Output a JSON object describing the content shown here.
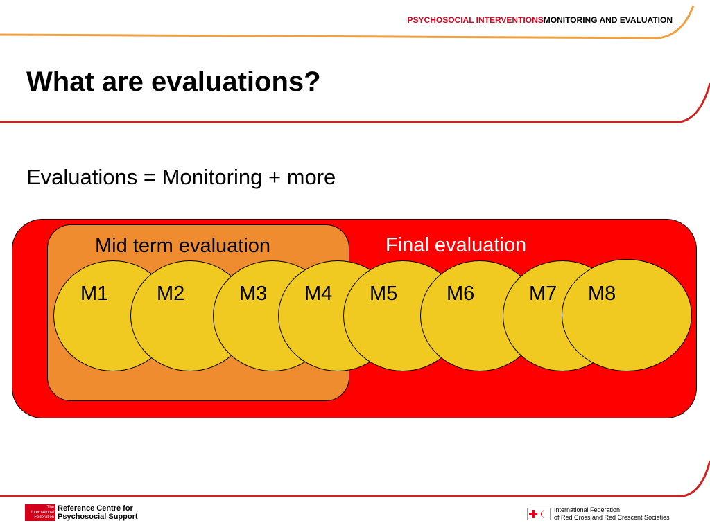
{
  "header": {
    "part1": "PSYCHOSOCIAL INTERVENTIONS",
    "part2": "MONITORING AND EVALUATION"
  },
  "title": "What are evaluations?",
  "subtitle": "Evaluations = Monitoring + more",
  "diagram": {
    "final_label": "Final evaluation",
    "mid_label": "Mid term evaluation",
    "monitoring": [
      "M1",
      "M2",
      "M3",
      "M4",
      "M5",
      "M6",
      "M7",
      "M8"
    ]
  },
  "footer": {
    "left_logo_text": "The International Federation",
    "left_line1": "Reference Centre for",
    "left_line2": "Psychosocial Support",
    "right_line1": "International Federation",
    "right_line2": "of Red Cross and Red Crescent Societies"
  },
  "colors": {
    "red": "#ff0000",
    "orange": "#f08c30",
    "yellow": "#f0ca20",
    "accent": "#e0001b"
  }
}
